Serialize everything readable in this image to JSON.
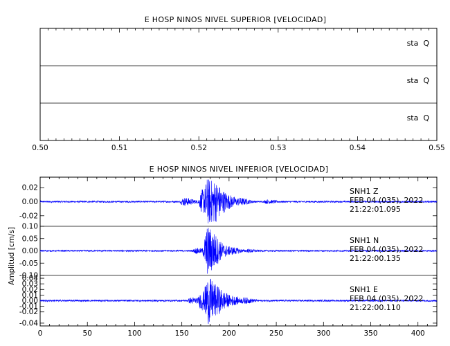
{
  "chart_data": [
    {
      "type": "line",
      "title": "E HOSP NINOS NIVEL SUPERIOR [VELOCIDAD]",
      "xlabel": "",
      "ylabel": "",
      "xlim": [
        0.5,
        0.55
      ],
      "x_ticks": [
        "0.50",
        "0.51",
        "0.52",
        "0.53",
        "0.54",
        "0.55"
      ],
      "grid": false,
      "panels": [
        {
          "annotation": "sta  Q",
          "values": []
        },
        {
          "annotation": "sta  Q",
          "values": []
        },
        {
          "annotation": "sta  Q",
          "values": []
        }
      ]
    },
    {
      "type": "line",
      "title": "E HOSP NINOS NIVEL INFERIOR [VELOCIDAD]",
      "xlabel": "",
      "ylabel": "Amplitud [cm/s]",
      "xlim": [
        0,
        420
      ],
      "x_ticks": [
        "0",
        "50",
        "100",
        "150",
        "200",
        "250",
        "300",
        "350",
        "400"
      ],
      "grid": false,
      "series_color": "#0000ff",
      "panels": [
        {
          "station": "SNH1",
          "component": "Z",
          "date": "FEB 04 (035), 2022",
          "time": "21:22:01.095",
          "ylim": [
            -0.035,
            0.035
          ],
          "y_ticks": [
            "0.02",
            "0.00",
            "-0.02"
          ],
          "noise_amplitude": 0.0012,
          "bursts": [
            {
              "x": 152,
              "peak": 0.006
            },
            {
              "x": 172,
              "peak": 0.018
            },
            {
              "x": 177,
              "peak": 0.034
            },
            {
              "x": 182,
              "peak": 0.032
            },
            {
              "x": 188,
              "peak": 0.02
            },
            {
              "x": 195,
              "peak": 0.012
            },
            {
              "x": 210,
              "peak": 0.006
            },
            {
              "x": 240,
              "peak": 0.003
            }
          ]
        },
        {
          "station": "SNH1",
          "component": "N",
          "date": "FEB 04 (035), 2022",
          "time": "21:22:00.135",
          "ylim": [
            -0.1,
            0.1
          ],
          "y_ticks": [
            "0.10",
            "0.05",
            "0.00",
            "-0.05",
            "-0.10"
          ],
          "noise_amplitude": 0.003,
          "bursts": [
            {
              "x": 165,
              "peak": 0.012
            },
            {
              "x": 177,
              "peak": 0.1
            },
            {
              "x": 182,
              "peak": 0.06
            },
            {
              "x": 190,
              "peak": 0.03
            },
            {
              "x": 200,
              "peak": 0.018
            },
            {
              "x": 220,
              "peak": 0.008
            }
          ]
        },
        {
          "station": "SNH1",
          "component": "E",
          "date": "FEB 04 (035), 2022",
          "time": "21:22:00.110",
          "ylim": [
            -0.045,
            0.045
          ],
          "y_ticks": [
            "0.04",
            "0.03",
            "0.02",
            "0.01",
            "0.00",
            "-0.01",
            "-0.02",
            "-0.04"
          ],
          "noise_amplitude": 0.0015,
          "bursts": [
            {
              "x": 160,
              "peak": 0.006
            },
            {
              "x": 171,
              "peak": 0.018
            },
            {
              "x": 177,
              "peak": 0.042
            },
            {
              "x": 183,
              "peak": 0.03
            },
            {
              "x": 190,
              "peak": 0.018
            },
            {
              "x": 200,
              "peak": 0.01
            },
            {
              "x": 215,
              "peak": 0.006
            }
          ]
        }
      ]
    }
  ]
}
